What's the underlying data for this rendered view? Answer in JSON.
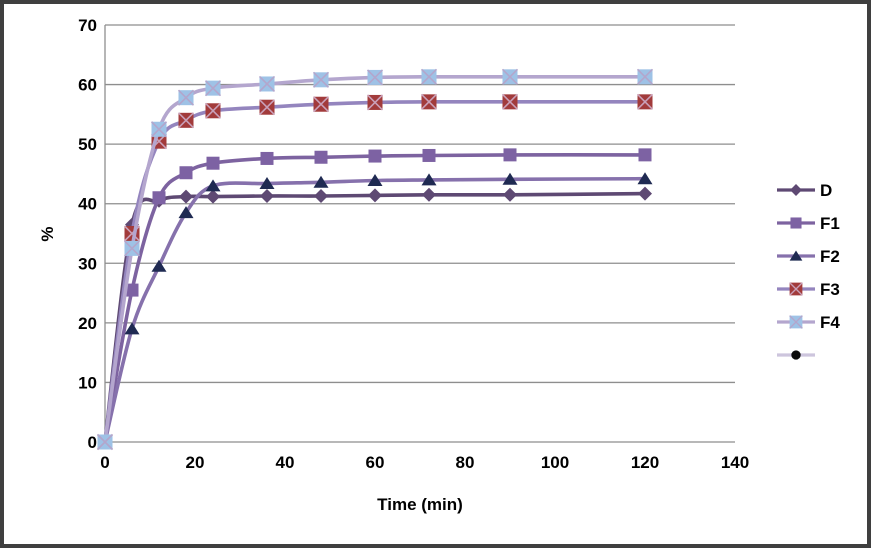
{
  "chart_data": {
    "type": "line",
    "title": "",
    "xlabel": "Time (min)",
    "ylabel": "%",
    "x": [
      0,
      6,
      12,
      18,
      24,
      36,
      48,
      60,
      72,
      90,
      120
    ],
    "xlim": [
      0,
      140
    ],
    "ylim": [
      0,
      70
    ],
    "x_ticks": [
      0,
      20,
      40,
      60,
      80,
      100,
      120,
      140
    ],
    "y_ticks": [
      0,
      10,
      20,
      30,
      40,
      50,
      60,
      70
    ],
    "grid": "horizontal",
    "gridline_color": "#8e8e8e",
    "legend_position": "right",
    "line_smoothing": true,
    "series": [
      {
        "name": "D",
        "values": [
          0,
          36.5,
          40.5,
          41.2,
          41.2,
          41.3,
          41.3,
          41.4,
          41.5,
          41.5,
          41.7
        ],
        "line_color": "#5e4973",
        "marker": "diamond",
        "marker_color": "#5e4973"
      },
      {
        "name": "F1",
        "values": [
          0,
          25.5,
          41,
          45.2,
          46.8,
          47.6,
          47.8,
          48,
          48.1,
          48.2,
          48.2
        ],
        "line_color": "#7d63a0",
        "marker": "square",
        "marker_color": "#7d62a3"
      },
      {
        "name": "F2",
        "values": [
          0,
          19,
          29.5,
          38.5,
          43,
          43.4,
          43.6,
          43.9,
          44,
          44.1,
          44.2
        ],
        "line_color": "#8671ac",
        "marker": "triangle",
        "marker_color": "#1f2a52"
      },
      {
        "name": "F3",
        "values": [
          0,
          35,
          50.5,
          54,
          55.6,
          56.2,
          56.7,
          57,
          57.1,
          57.1,
          57.1
        ],
        "line_color": "#9485be",
        "marker": "square-x",
        "marker_color": "#a23b3b",
        "marker_x_color": "#c9a0b8"
      },
      {
        "name": "F4",
        "values": [
          0,
          32.5,
          52.5,
          57.8,
          59.4,
          60.1,
          60.8,
          61.2,
          61.3,
          61.3,
          61.3
        ],
        "line_color": "#b4a6ce",
        "marker": "square-x",
        "marker_color": "#9ec2e6",
        "marker_x_color": "#b3a6cc"
      },
      {
        "name": "",
        "values": [],
        "line_color": "#cdc5dd",
        "marker": "circle",
        "marker_color": "#0a0a0a"
      }
    ]
  }
}
